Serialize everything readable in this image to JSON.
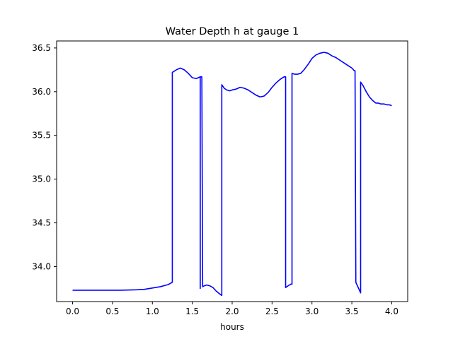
{
  "chart_data": {
    "type": "line",
    "title": "Water Depth h at gauge 1",
    "xlabel": "hours",
    "ylabel": "",
    "xlim": [
      -0.2,
      4.2
    ],
    "ylim": [
      33.6,
      36.58
    ],
    "xticks": [
      0.0,
      0.5,
      1.0,
      1.5,
      2.0,
      2.5,
      3.0,
      3.5,
      4.0
    ],
    "xtick_labels": [
      "0.0",
      "0.5",
      "1.0",
      "1.5",
      "2.0",
      "2.5",
      "3.0",
      "3.5",
      "4.0"
    ],
    "yticks": [
      34.0,
      34.5,
      35.0,
      35.5,
      36.0,
      36.5
    ],
    "ytick_labels": [
      "34.0",
      "34.5",
      "35.0",
      "35.5",
      "36.0",
      "36.5"
    ],
    "grid": false,
    "legend": "none",
    "series": [
      {
        "color": "#0000ff",
        "x": [
          0.0,
          0.2,
          0.4,
          0.6,
          0.8,
          0.9,
          1.0,
          1.1,
          1.2,
          1.25,
          1.25,
          1.3,
          1.35,
          1.4,
          1.45,
          1.5,
          1.55,
          1.6,
          1.6,
          1.6,
          1.62,
          1.63,
          1.65,
          1.65,
          1.68,
          1.72,
          1.76,
          1.8,
          1.84,
          1.87,
          1.87,
          1.9,
          1.93,
          1.97,
          2.0,
          2.05,
          2.1,
          2.15,
          2.2,
          2.25,
          2.3,
          2.35,
          2.4,
          2.45,
          2.5,
          2.55,
          2.6,
          2.65,
          2.67,
          2.67,
          2.7,
          2.74,
          2.75,
          2.75,
          2.78,
          2.82,
          2.86,
          2.9,
          2.95,
          3.0,
          3.05,
          3.1,
          3.15,
          3.2,
          3.25,
          3.3,
          3.35,
          3.4,
          3.45,
          3.5,
          3.53,
          3.54,
          3.55,
          3.61,
          3.61,
          3.64,
          3.68,
          3.72,
          3.76,
          3.8,
          3.83,
          3.86,
          3.9,
          3.94,
          3.97,
          4.0
        ],
        "y": [
          33.73,
          33.73,
          33.73,
          33.73,
          33.735,
          33.74,
          33.755,
          33.77,
          33.795,
          33.82,
          36.22,
          36.25,
          36.27,
          36.25,
          36.21,
          36.16,
          36.15,
          36.17,
          33.75,
          36.17,
          36.17,
          33.77,
          33.78,
          33.78,
          33.79,
          33.78,
          33.76,
          33.72,
          33.69,
          33.67,
          36.08,
          36.04,
          36.02,
          36.01,
          36.02,
          36.03,
          36.05,
          36.04,
          36.02,
          35.99,
          35.96,
          35.94,
          35.95,
          35.99,
          36.05,
          36.1,
          36.14,
          36.17,
          36.17,
          33.76,
          33.78,
          33.8,
          33.8,
          36.21,
          36.2,
          36.2,
          36.21,
          36.25,
          36.31,
          36.38,
          36.42,
          36.44,
          36.45,
          36.44,
          36.41,
          36.39,
          36.36,
          36.33,
          36.3,
          36.27,
          36.24,
          36.24,
          33.82,
          33.7,
          36.11,
          36.07,
          36.0,
          35.94,
          35.9,
          35.87,
          35.87,
          35.86,
          35.86,
          35.85,
          35.85,
          35.84
        ]
      }
    ]
  }
}
